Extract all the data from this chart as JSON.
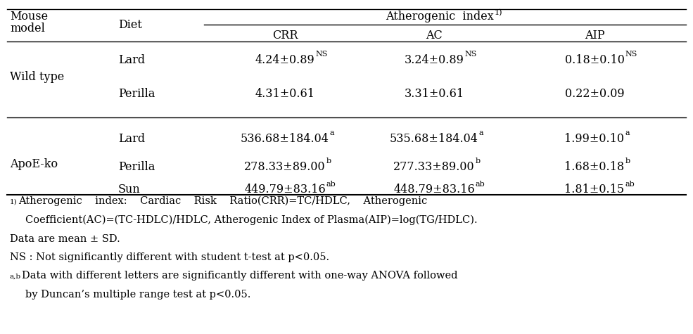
{
  "rows": [
    {
      "mouse_model": "Wild type",
      "diet": "Lard",
      "crr": "4.24±0.89",
      "crr_sup": "NS",
      "ac": "3.24±0.89",
      "ac_sup": "NS",
      "aip": "0.18±0.10",
      "aip_sup": "NS"
    },
    {
      "mouse_model": "",
      "diet": "Perilla",
      "crr": "4.31±0.61",
      "crr_sup": "",
      "ac": "3.31±0.61",
      "ac_sup": "",
      "aip": "0.22±0.09",
      "aip_sup": ""
    },
    {
      "mouse_model": "ApoE-ko",
      "diet": "Lard",
      "crr": "536.68±184.04",
      "crr_sup": "a",
      "ac": "535.68±184.04",
      "ac_sup": "a",
      "aip": "1.99±0.10",
      "aip_sup": "a"
    },
    {
      "mouse_model": "",
      "diet": "Perilla",
      "crr": "278.33±89.00",
      "crr_sup": "b",
      "ac": "277.33±89.00",
      "ac_sup": "b",
      "aip": "1.68±0.18",
      "aip_sup": "b"
    },
    {
      "mouse_model": "",
      "diet": "Sun",
      "crr": "449.79±83.16",
      "crr_sup": "ab",
      "ac": "448.79±83.16",
      "ac_sup": "ab",
      "aip": "1.81±0.15",
      "aip_sup": "ab"
    }
  ],
  "bg_color": "white",
  "text_color": "black",
  "fs_main": 11.5,
  "fs_sup": 8.0,
  "fs_foot": 10.5,
  "fs_foot_sup": 7.5
}
